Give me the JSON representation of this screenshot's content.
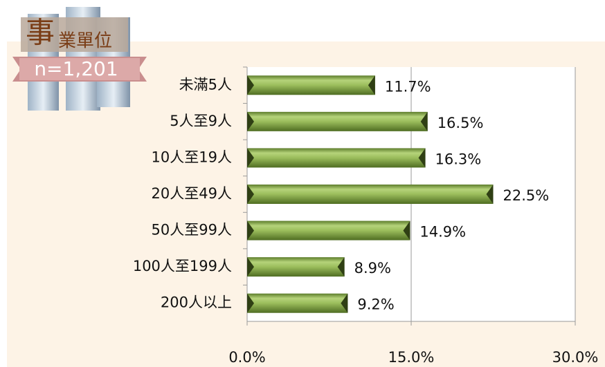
{
  "chart_data": {
    "type": "bar",
    "badge": {
      "title_first": "事",
      "title_rest": "業單位",
      "sample": "n=1,201"
    },
    "categories": [
      "未滿5人",
      "5人至9人",
      "10人至19人",
      "20人至49人",
      "50人至99人",
      "100人至199人",
      "200人以上"
    ],
    "values": [
      11.7,
      16.5,
      16.3,
      22.5,
      14.9,
      8.9,
      9.2
    ],
    "value_labels": [
      "11.7%",
      "16.5%",
      "16.3%",
      "22.5%",
      "14.9%",
      "8.9%",
      "9.2%"
    ],
    "color": "#8cb04c",
    "xlim": [
      0,
      30
    ],
    "xticks": [
      {
        "value": 0,
        "label": "0.0%"
      },
      {
        "value": 15,
        "label": "15.0%"
      },
      {
        "value": 30,
        "label": "30.0%"
      }
    ],
    "grid": true
  }
}
